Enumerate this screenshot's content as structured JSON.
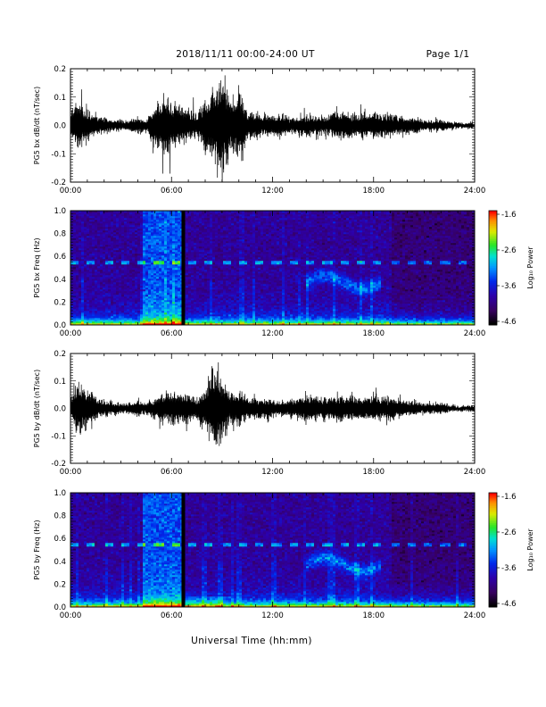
{
  "header": {
    "date_range": "2018/11/11   00:00-24:00 UT",
    "page": "Page 1/1"
  },
  "xlabel": "Universal Time (hh:mm)",
  "colorbar": {
    "ticks": [
      "-1.6",
      "-2.6",
      "-3.6",
      "-4.6"
    ],
    "label": "Log₁₀ Power"
  },
  "chart_data": [
    {
      "type": "line",
      "ylabel": "PG5 bx dB/dt (nT/sec)",
      "xlim_hours": [
        0,
        24
      ],
      "ylim": [
        -0.2,
        0.2
      ],
      "xticks": [
        "00:00",
        "06:00",
        "12:00",
        "18:00",
        "24:00"
      ],
      "yticks": [
        "0.2",
        "0.1",
        "0.0",
        "-0.1",
        "-0.2"
      ],
      "envelope": {
        "hours": [
          0,
          0.5,
          1,
          1.5,
          2,
          2.5,
          3,
          3.5,
          4,
          4.5,
          5,
          5.5,
          6,
          6.5,
          7,
          7.5,
          8,
          8.5,
          9,
          9.5,
          10,
          10.5,
          11,
          11.5,
          12,
          13,
          14,
          15,
          16,
          17,
          18,
          19,
          20,
          21,
          22,
          23,
          24
        ],
        "amplitude": [
          0.05,
          0.09,
          0.05,
          0.04,
          0.03,
          0.02,
          0.02,
          0.02,
          0.03,
          0.02,
          0.07,
          0.11,
          0.09,
          0.07,
          0.06,
          0.04,
          0.09,
          0.13,
          0.2,
          0.1,
          0.13,
          0.05,
          0.05,
          0.04,
          0.04,
          0.03,
          0.04,
          0.03,
          0.05,
          0.04,
          0.05,
          0.04,
          0.03,
          0.02,
          0.02,
          0.01,
          0.01
        ]
      }
    },
    {
      "type": "heatmap",
      "ylabel": "PG5 bx Freq (Hz)",
      "xlim_hours": [
        0,
        24
      ],
      "ylim": [
        0.0,
        1.0
      ],
      "zlim": [
        -4.6,
        -1.6
      ],
      "xticks": [
        "00:00",
        "06:00",
        "12:00",
        "18:00",
        "24:00"
      ],
      "yticks": [
        "1.0",
        "0.8",
        "0.6",
        "0.4",
        "0.2",
        "0.0"
      ],
      "data_gap_hour": 6.7,
      "enhanced_band_hours": [
        4.3,
        6.6
      ],
      "line_freq_hz": 0.55,
      "wave_event": {
        "hours": [
          14.0,
          18.5
        ],
        "freq_hz": [
          0.3,
          0.45
        ]
      }
    },
    {
      "type": "line",
      "ylabel": "PG5 by dB/dt (nT/sec)",
      "xlim_hours": [
        0,
        24
      ],
      "ylim": [
        -0.2,
        0.2
      ],
      "xticks": [
        "00:00",
        "06:00",
        "12:00",
        "18:00",
        "24:00"
      ],
      "yticks": [
        "0.2",
        "0.1",
        "0.0",
        "-0.1",
        "-0.2"
      ],
      "envelope": {
        "hours": [
          0,
          0.5,
          1,
          1.5,
          2,
          2.5,
          3,
          3.5,
          4,
          4.5,
          5,
          5.5,
          6,
          6.5,
          7,
          7.5,
          8,
          8.5,
          9,
          9.5,
          10,
          10.5,
          11,
          11.5,
          12,
          13,
          14,
          15,
          16,
          17,
          18,
          19,
          20,
          21,
          22,
          23,
          24
        ],
        "amplitude": [
          0.04,
          0.1,
          0.07,
          0.04,
          0.03,
          0.02,
          0.02,
          0.02,
          0.03,
          0.02,
          0.04,
          0.05,
          0.06,
          0.05,
          0.06,
          0.04,
          0.07,
          0.16,
          0.12,
          0.05,
          0.07,
          0.04,
          0.04,
          0.04,
          0.03,
          0.03,
          0.05,
          0.04,
          0.05,
          0.04,
          0.05,
          0.04,
          0.03,
          0.02,
          0.02,
          0.01,
          0.01
        ]
      }
    },
    {
      "type": "heatmap",
      "ylabel": "PG5 by Freq (Hz)",
      "xlim_hours": [
        0,
        24
      ],
      "ylim": [
        0.0,
        1.0
      ],
      "zlim": [
        -4.6,
        -1.6
      ],
      "xticks": [
        "00:00",
        "06:00",
        "12:00",
        "18:00",
        "24:00"
      ],
      "yticks": [
        "1.0",
        "0.8",
        "0.6",
        "0.4",
        "0.2",
        "0.0"
      ],
      "data_gap_hour": 6.7,
      "enhanced_band_hours": [
        4.3,
        6.6
      ],
      "line_freq_hz": 0.55,
      "wave_event": {
        "hours": [
          14.0,
          18.5
        ],
        "freq_hz": [
          0.3,
          0.45
        ]
      }
    }
  ]
}
